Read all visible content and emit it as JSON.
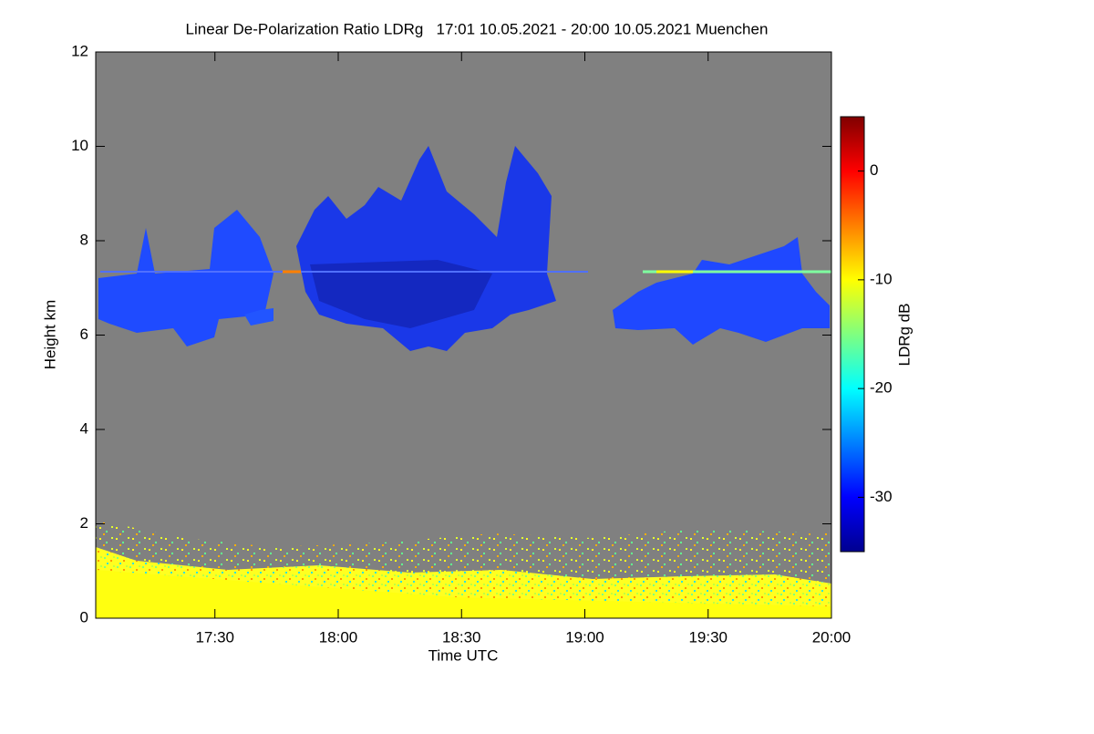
{
  "chart_data": {
    "type": "heatmap",
    "title": "Linear De-Polarization Ratio LDRg   17:01 10.05.2021 - 20:00 10.05.2021 Muenchen",
    "x_label": "Time UTC",
    "y_label": "Height km",
    "colorbar_label": "LDRg dB",
    "xlim": [
      1021,
      1200
    ],
    "xticks": [
      {
        "value": 1050,
        "label": "17:30"
      },
      {
        "value": 1080,
        "label": "18:00"
      },
      {
        "value": 1110,
        "label": "18:30"
      },
      {
        "value": 1140,
        "label": "19:00"
      },
      {
        "value": 1170,
        "label": "19:30"
      },
      {
        "value": 1200,
        "label": "20:00"
      }
    ],
    "ylim": [
      0,
      12
    ],
    "yticks": [
      0,
      2,
      4,
      6,
      8,
      10,
      12
    ],
    "clim": [
      -35,
      5
    ],
    "cticks": [
      0,
      -10,
      -20,
      -30
    ],
    "colormap": "jet",
    "background": "#808080"
  }
}
